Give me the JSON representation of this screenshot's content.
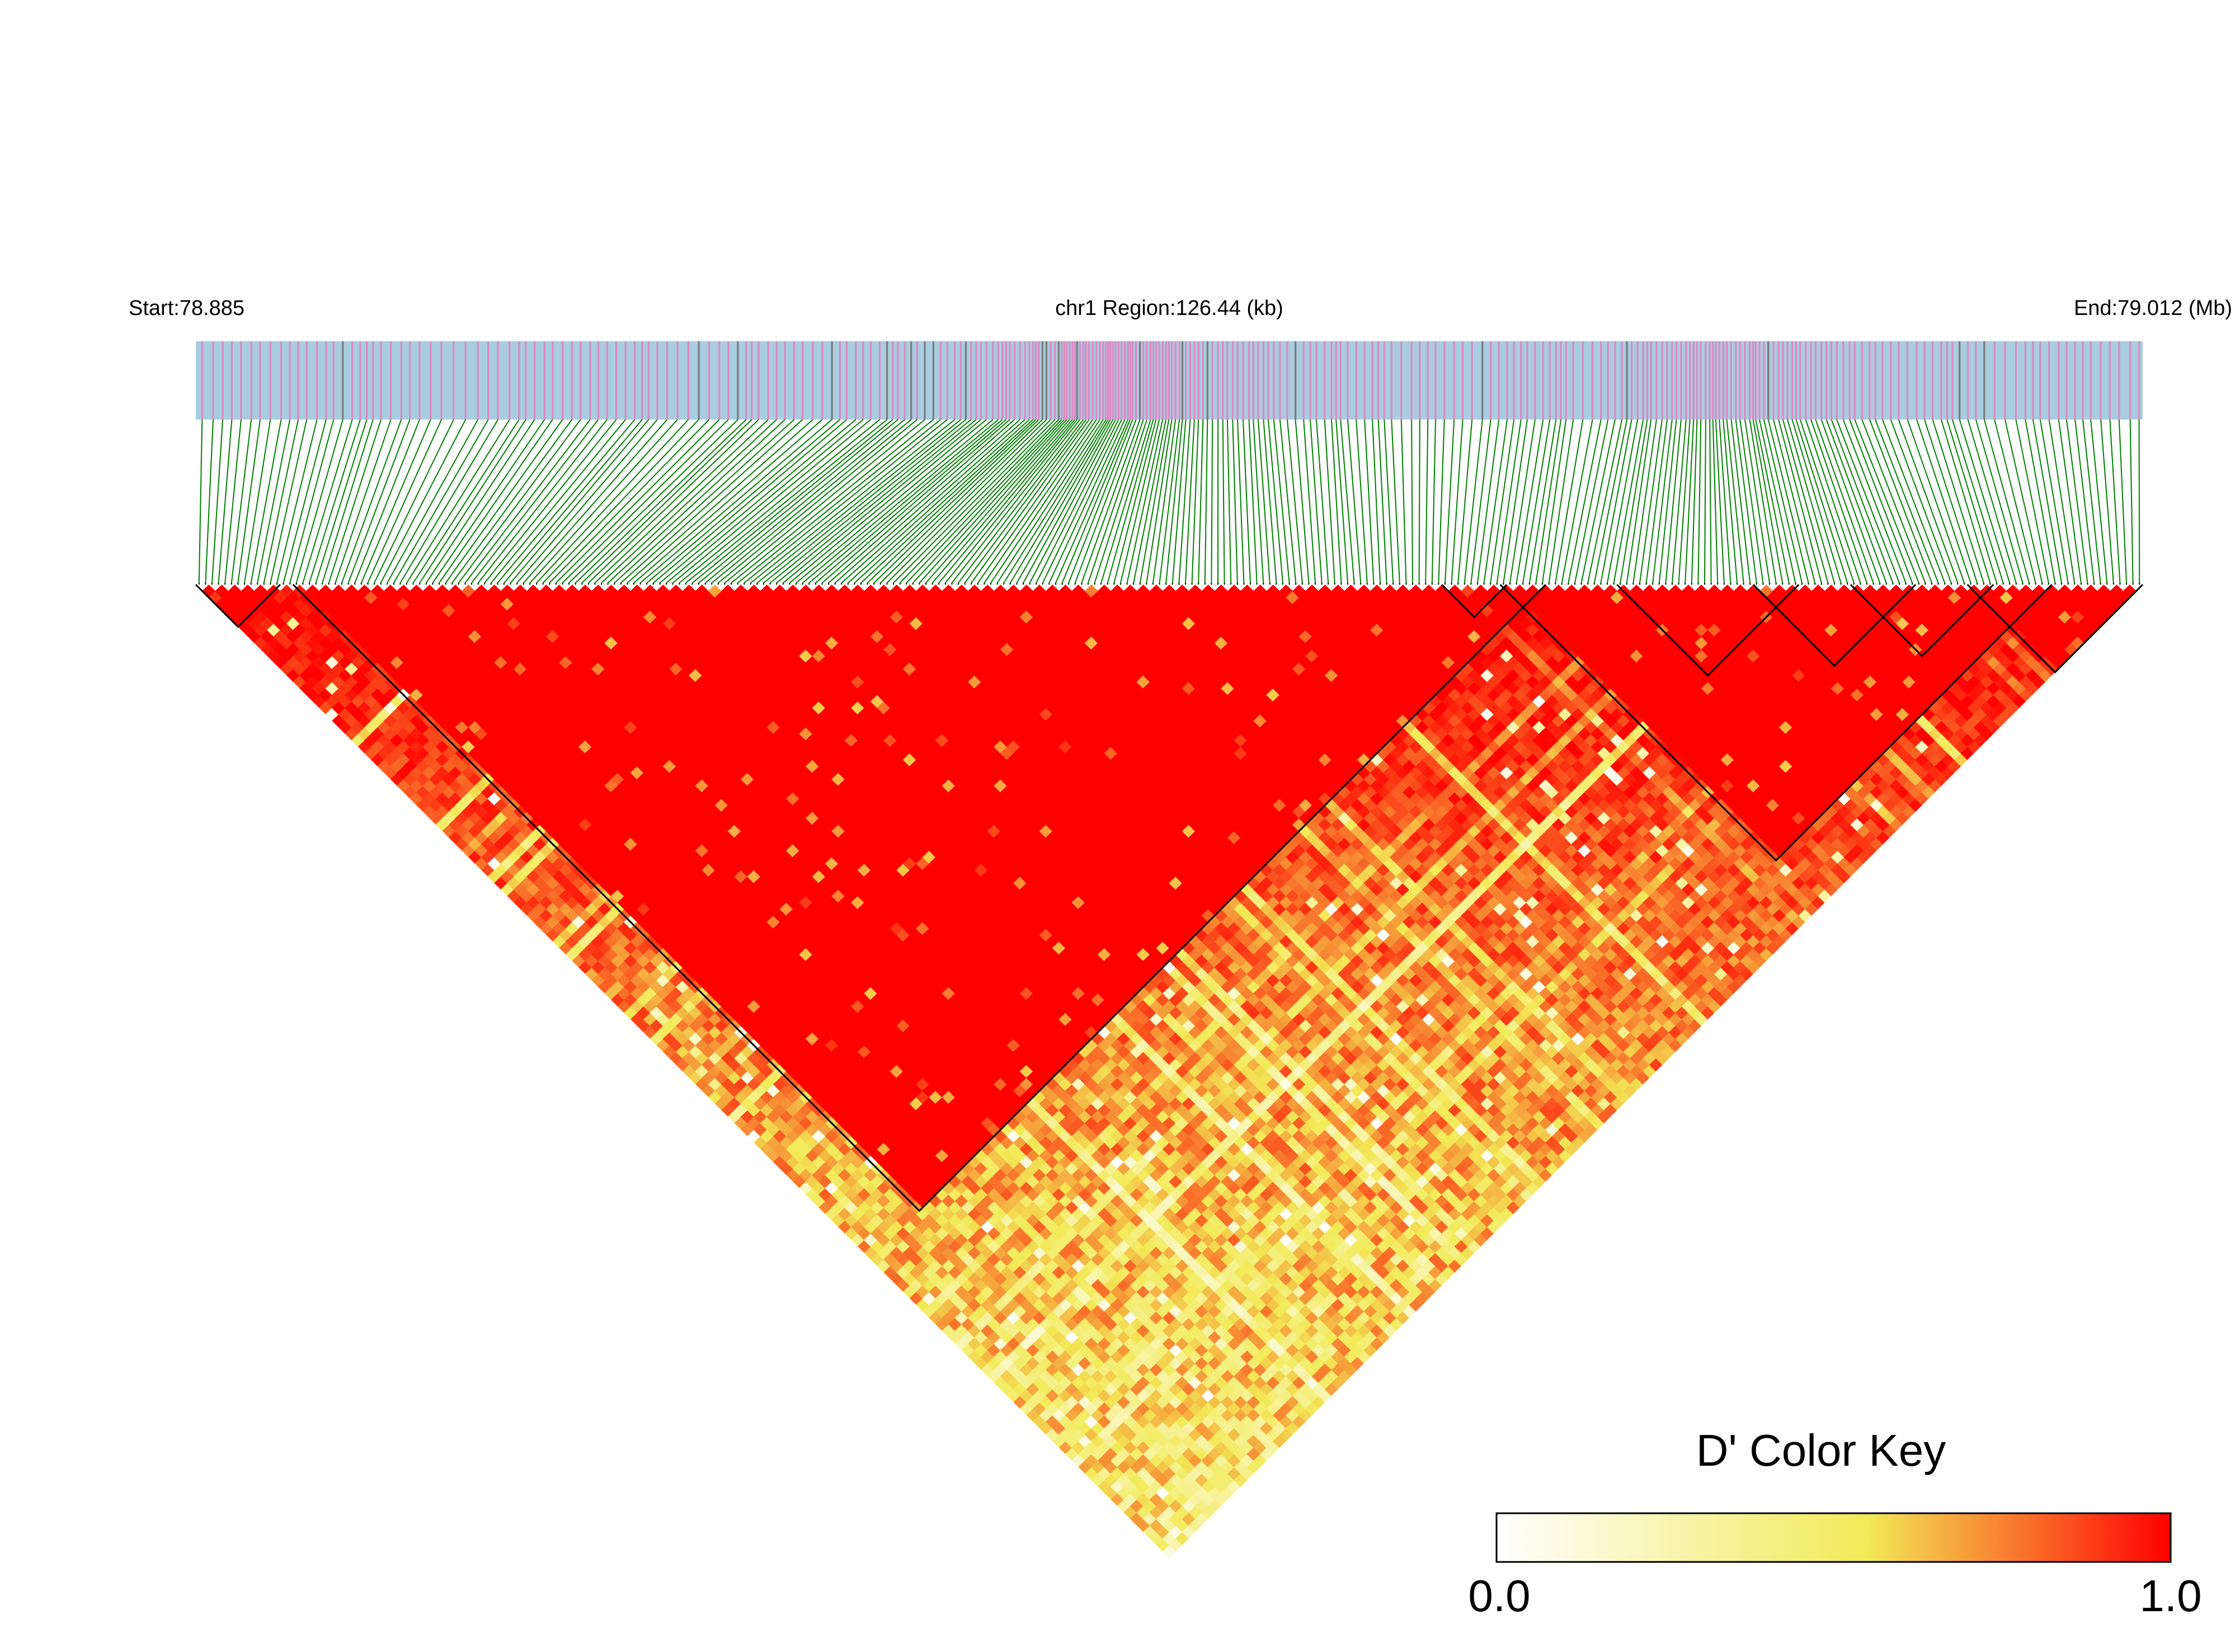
{
  "header": {
    "start_label": "Start:78.885",
    "region_label": "chr1 Region:126.44 (kb)",
    "end_label": "End:79.012 (Mb)"
  },
  "color_key": {
    "title": "D' Color Key",
    "min_label": "0.0",
    "max_label": "1.0",
    "stops": [
      "#ffffff",
      "#f2ea57",
      "#ff0000"
    ]
  },
  "colors": {
    "snp_band_background": "#a8cde0",
    "snp_band_marker": "#dd88c3",
    "snp_connector_line": "#008000",
    "ld_high": "#ff0000",
    "block_outline": "#000000"
  },
  "chart_data": {
    "type": "heatmap",
    "title": "",
    "x_axis": {
      "chromosome": "chr1",
      "start_mb": 78.885,
      "end_mb": 79.012,
      "region_kb": 126.44
    },
    "value_measure": "D'",
    "value_range": [
      0.0,
      1.0
    ],
    "snp_count_estimate": 300,
    "ld_blocks_fraction_of_snps": [
      [
        0.0,
        0.04
      ],
      [
        0.05,
        0.69
      ],
      [
        0.64,
        0.67
      ],
      [
        0.67,
        0.95
      ],
      [
        0.73,
        0.82
      ],
      [
        0.8,
        0.88
      ],
      [
        0.85,
        0.92
      ],
      [
        0.91,
        1.0
      ]
    ]
  }
}
